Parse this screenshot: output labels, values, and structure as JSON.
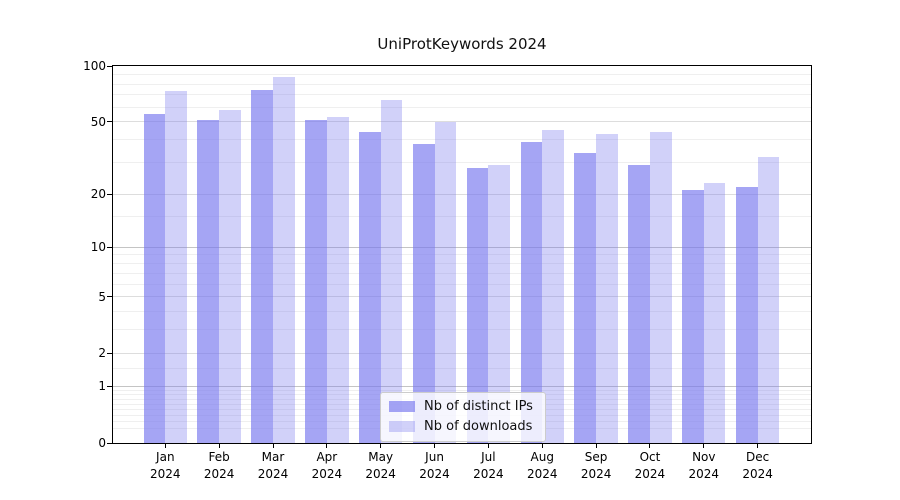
{
  "chart_data": {
    "type": "bar",
    "title": "UniProtKeywords 2024",
    "categories": [
      "Jan 2024",
      "Feb 2024",
      "Mar 2024",
      "Apr 2024",
      "May 2024",
      "Jun 2024",
      "Jul 2024",
      "Aug 2024",
      "Sep 2024",
      "Oct 2024",
      "Nov 2024",
      "Dec 2024"
    ],
    "series": [
      {
        "key": "distinct-ips",
        "name": "Nb of distinct IPs",
        "color": "rgba(119,119,238,0.66)",
        "values": [
          55,
          51,
          74,
          51,
          44,
          38,
          28,
          39,
          34,
          29,
          21,
          22
        ]
      },
      {
        "key": "downloads",
        "name": "Nb of downloads",
        "color": "rgba(119,119,238,0.34)",
        "values": [
          73,
          58,
          87,
          53,
          66,
          50,
          29,
          45,
          43,
          44,
          23,
          32
        ]
      }
    ],
    "xlabel": "",
    "ylabel": "",
    "yscale": "log1p",
    "ylim": [
      0,
      100
    ],
    "y_tick_values": [
      100,
      50,
      20,
      10,
      5,
      2,
      1,
      0
    ],
    "y_tick_labels": [
      "100",
      "50",
      "20",
      "10",
      "5",
      "2",
      "1",
      "0"
    ],
    "gridlines": {
      "decade_values": [
        1,
        10
      ],
      "labeled_values": [
        2,
        5,
        20,
        50
      ],
      "minor_values": [
        0.2,
        0.3,
        0.4,
        0.5,
        0.6,
        0.7,
        0.8,
        0.9,
        1.5,
        3,
        4,
        6,
        7,
        8,
        9,
        15,
        30,
        40,
        60,
        70,
        80,
        90
      ],
      "decade_color": "#c4c4c4",
      "labeled_color": "#dddddd",
      "minor_color": "#efefef"
    },
    "legend": {
      "position": "lower center"
    },
    "frame_color": "#000000",
    "background": "#ffffff"
  }
}
